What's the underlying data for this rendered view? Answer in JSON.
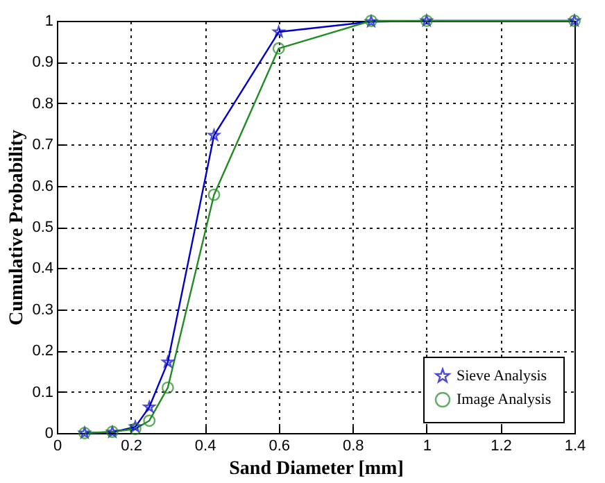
{
  "chart_data": {
    "type": "line",
    "xlabel": "Sand Diameter [mm]",
    "ylabel": "Cumulative Probability",
    "xlim": [
      0,
      1.4
    ],
    "xticks": [
      0,
      0.2,
      0.4,
      0.6,
      0.8,
      1,
      1.2,
      1.4
    ],
    "ylim": [
      0,
      1
    ],
    "yticks": [
      0,
      0.1,
      0.2,
      0.3,
      0.4,
      0.5,
      0.6,
      0.7,
      0.8,
      0.9,
      1
    ],
    "grid": true,
    "legend": "bottom right",
    "line_style": "solid",
    "series": [
      {
        "name": "Sieve Analysis",
        "color": "#0000cc",
        "marker": "star",
        "x": [
          0.075,
          0.15,
          0.212,
          0.25,
          0.3,
          0.425,
          0.6,
          0.85,
          1,
          1.4
        ],
        "values": [
          0,
          0.002,
          0.015,
          0.063,
          0.172,
          0.722,
          0.973,
          0.998,
          1,
          1
        ]
      },
      {
        "name": "Image Analysis",
        "color": "#228b22",
        "marker": "circle",
        "x": [
          0.075,
          0.15,
          0.212,
          0.25,
          0.3,
          0.425,
          0.6,
          0.85,
          1,
          1.4
        ],
        "values": [
          0,
          0.003,
          0.01,
          0.03,
          0.11,
          0.578,
          0.933,
          1,
          1,
          1
        ]
      }
    ]
  }
}
